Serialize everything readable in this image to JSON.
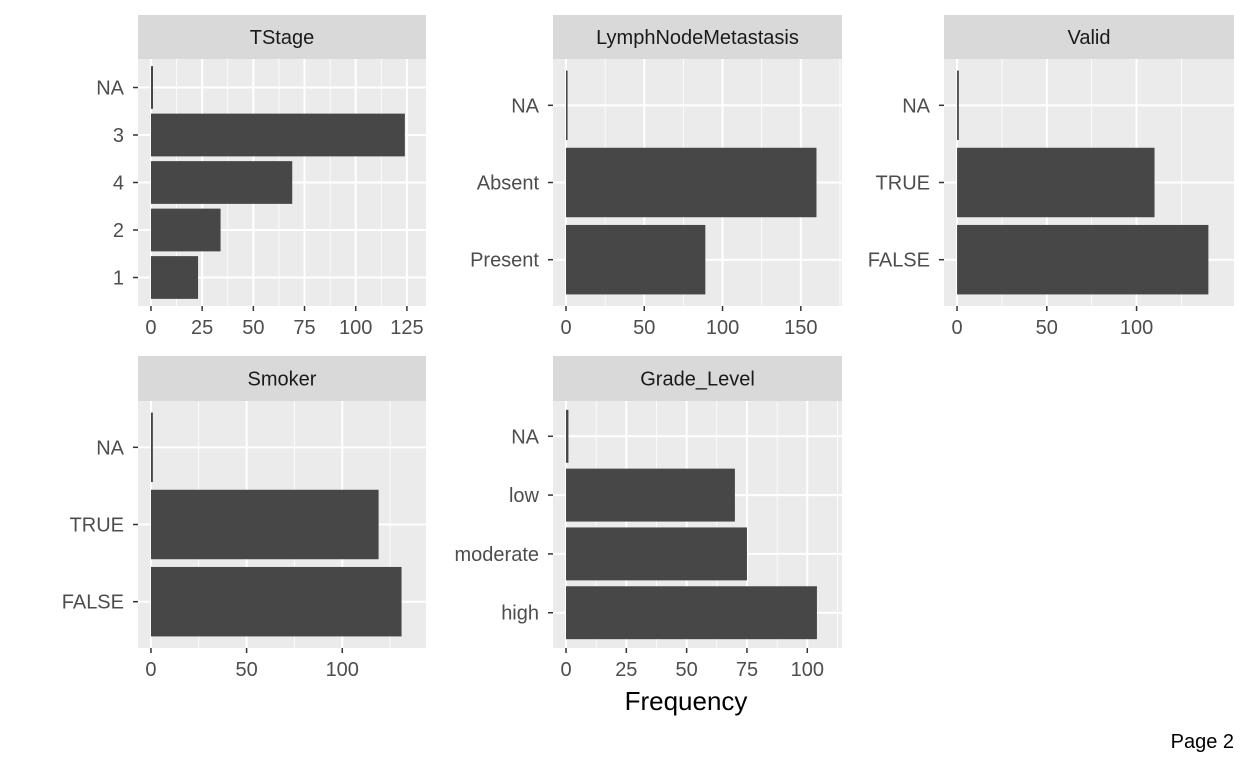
{
  "xlabel": "Frequency",
  "page_label": "Page 2",
  "colors": {
    "panel_bg": "#ebebeb",
    "strip_bg": "#d9d9d9",
    "bar": "#474747",
    "grid": "#ffffff",
    "tick": "#333333"
  },
  "chart_data": [
    {
      "type": "bar",
      "orientation": "horizontal",
      "title": "TStage",
      "categories": [
        "NA",
        "3",
        "4",
        "2",
        "1"
      ],
      "values": [
        1,
        124,
        69,
        34,
        23
      ],
      "xlim": [
        0,
        128
      ],
      "xticks": [
        0,
        25,
        50,
        75,
        100,
        125
      ],
      "grid": true
    },
    {
      "type": "bar",
      "orientation": "horizontal",
      "title": "LymphNodeMetastasis",
      "categories": [
        "NA",
        "Absent",
        "Present"
      ],
      "values": [
        1,
        160,
        89
      ],
      "xlim": [
        0,
        168
      ],
      "xticks": [
        0,
        50,
        100,
        150
      ],
      "grid": true
    },
    {
      "type": "bar",
      "orientation": "horizontal",
      "title": "Valid",
      "categories": [
        "NA",
        "TRUE",
        "FALSE"
      ],
      "values": [
        1,
        110,
        140
      ],
      "xlim": [
        0,
        147
      ],
      "xticks": [
        0,
        50,
        100
      ],
      "grid": true
    },
    {
      "type": "bar",
      "orientation": "horizontal",
      "title": "Smoker",
      "categories": [
        "NA",
        "TRUE",
        "FALSE"
      ],
      "values": [
        1,
        119,
        131
      ],
      "xlim": [
        0,
        137
      ],
      "xticks": [
        0,
        50,
        100
      ],
      "grid": true
    },
    {
      "type": "bar",
      "orientation": "horizontal",
      "title": "Grade_Level",
      "categories": [
        "NA",
        "low",
        "moderate",
        "high"
      ],
      "values": [
        1,
        70,
        75,
        104
      ],
      "xlim": [
        0,
        109
      ],
      "xticks": [
        0,
        25,
        50,
        75,
        100
      ],
      "grid": true
    }
  ]
}
